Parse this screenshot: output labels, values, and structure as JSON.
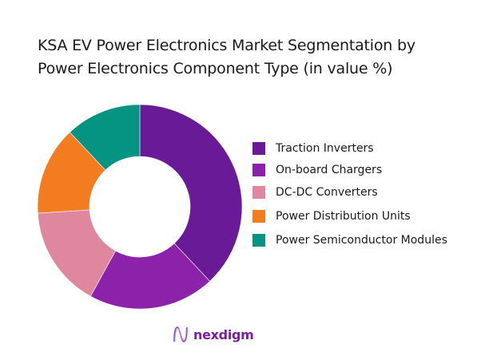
{
  "title": {
    "line1": "KSA EV Power Electronics Market Segmentation by",
    "line2": "Power Electronics Component Type (in value %)"
  },
  "legend": {
    "items": [
      {
        "label": "Traction Inverters",
        "color": "#691a96"
      },
      {
        "label": "On-board Chargers",
        "color": "#8c22aa"
      },
      {
        "label": "DC-DC Converters",
        "color": "#de879e"
      },
      {
        "label": "Power Distribution Units",
        "color": "#f47c20"
      },
      {
        "label": "Power Semiconductor Modules",
        "color": "#069482"
      }
    ]
  },
  "brand": {
    "name": "nexdigm",
    "color": "#7a1fa2"
  },
  "chart_data": {
    "type": "pie",
    "subtype": "donut",
    "title": "KSA EV Power Electronics Market Segmentation by Power Electronics Component Type (in value %)",
    "categories": [
      "Traction Inverters",
      "On-board Chargers",
      "DC-DC Converters",
      "Power Distribution Units",
      "Power Semiconductor Modules"
    ],
    "values": [
      38,
      20,
      16,
      14,
      12
    ],
    "colors": [
      "#691a96",
      "#8c22aa",
      "#de879e",
      "#f47c20",
      "#069482"
    ],
    "start_angle": "12 o'clock, clockwise",
    "legend_position": "right",
    "data_labels": false
  }
}
